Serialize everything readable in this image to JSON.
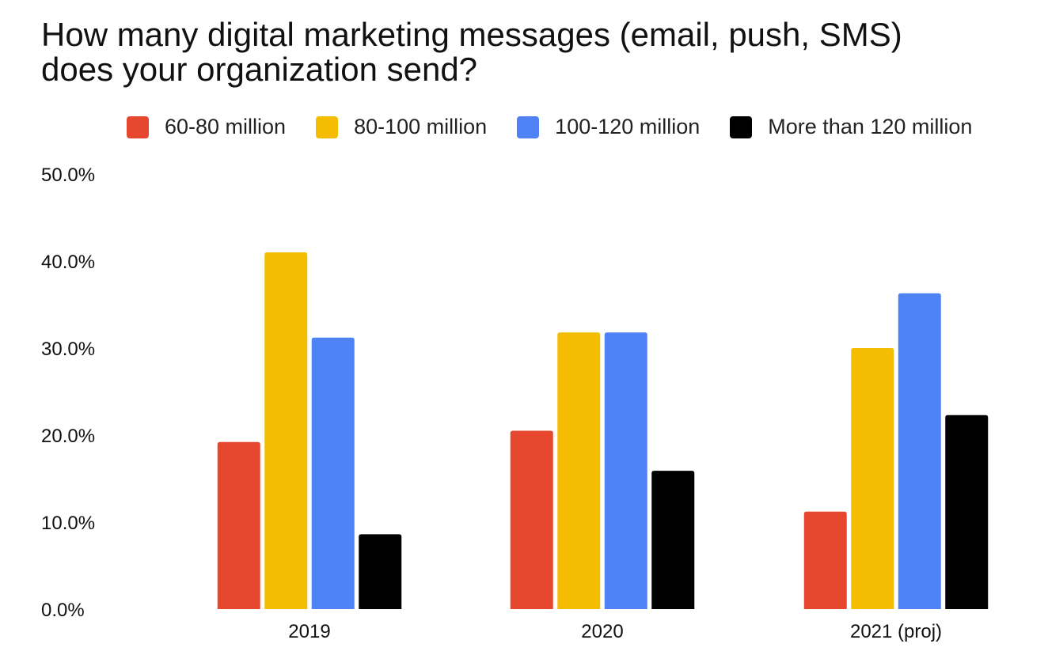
{
  "chart_data": {
    "type": "bar",
    "title_lines": [
      "How many digital marketing messages (email, push, SMS)",
      "does your organization send?"
    ],
    "categories": [
      "2019",
      "2020",
      "2021 (proj)"
    ],
    "series": [
      {
        "name": "60-80 million",
        "color": "#e5482f",
        "values": [
          19.2,
          20.5,
          11.2
        ]
      },
      {
        "name": "80-100 million",
        "color": "#f4bd02",
        "values": [
          41.0,
          31.8,
          30.0
        ]
      },
      {
        "name": "100-120 million",
        "color": "#4f82f4",
        "values": [
          31.2,
          31.8,
          36.3
        ]
      },
      {
        "name": "More than 120 million",
        "color": "#000000",
        "values": [
          8.6,
          15.9,
          22.3
        ]
      }
    ],
    "ylim": [
      0,
      50
    ],
    "yticks": [
      "0.0%",
      "10.0%",
      "20.0%",
      "30.0%",
      "40.0%",
      "50.0%"
    ],
    "grid": false,
    "legend_position": "top"
  }
}
